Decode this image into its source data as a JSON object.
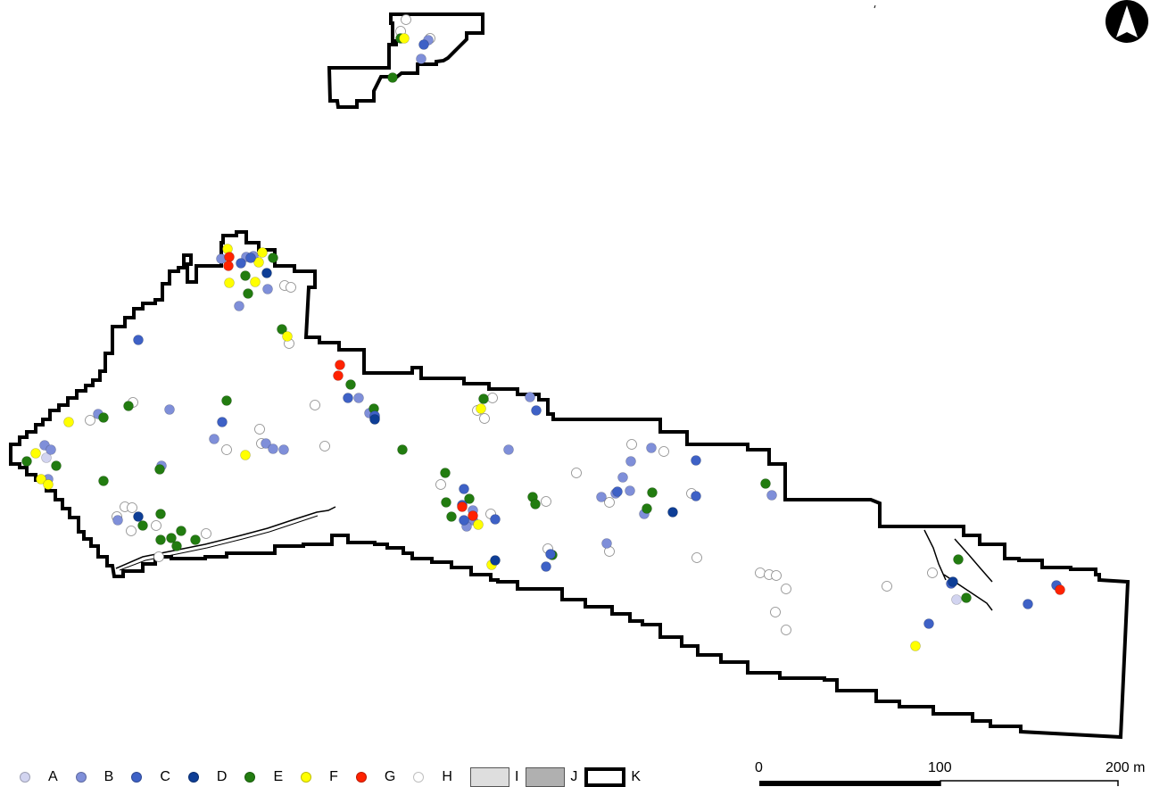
{
  "legend": [
    {
      "key": "A",
      "label": "A",
      "color": "#d2d4f0"
    },
    {
      "key": "B",
      "label": "B",
      "color": "#7f8fd9"
    },
    {
      "key": "C",
      "label": "C",
      "color": "#3e61c6"
    },
    {
      "key": "D",
      "label": "D",
      "color": "#0e3e96"
    },
    {
      "key": "E",
      "label": "E",
      "color": "#227c10"
    },
    {
      "key": "F",
      "label": "F",
      "color": "#ffff00"
    },
    {
      "key": "G",
      "label": "G",
      "color": "#ff2200"
    },
    {
      "key": "H",
      "label": "H",
      "color": "#ffffff"
    },
    {
      "key": "I",
      "label": "I",
      "color": "#dedede"
    },
    {
      "key": "J",
      "label": "J",
      "color": "#b0b0b0"
    },
    {
      "key": "K",
      "label": "K",
      "color": "#000000"
    }
  ],
  "scale": {
    "label_0": "0",
    "label_mid": "100",
    "label_end": "200",
    "unit": "m"
  },
  "north_arrow": "north-arrow-icon",
  "points": {
    "A": [
      [
        1072,
        672
      ],
      [
        52,
        513
      ]
    ],
    "B": [
      [
        472,
        66
      ],
      [
        480,
        45
      ],
      [
        268,
        343
      ],
      [
        300,
        324
      ],
      [
        190,
        459
      ],
      [
        110,
        464
      ],
      [
        181,
        522
      ],
      [
        240,
        492
      ],
      [
        298,
        497
      ],
      [
        306,
        503
      ],
      [
        318,
        504
      ],
      [
        50,
        499
      ],
      [
        57,
        504
      ],
      [
        54,
        537
      ],
      [
        132,
        583
      ],
      [
        402,
        446
      ],
      [
        414,
        463
      ],
      [
        420,
        468
      ],
      [
        570,
        504
      ],
      [
        530,
        572
      ],
      [
        530,
        583
      ],
      [
        523,
        590
      ],
      [
        680,
        609
      ],
      [
        707,
        517
      ],
      [
        730,
        502
      ],
      [
        698,
        535
      ],
      [
        706,
        550
      ],
      [
        690,
        553
      ],
      [
        674,
        557
      ],
      [
        722,
        576
      ],
      [
        865,
        555
      ],
      [
        594,
        445
      ],
      [
        284,
        287
      ],
      [
        276,
        288
      ],
      [
        248,
        290
      ]
    ],
    "C": [
      [
        475,
        50
      ],
      [
        155,
        381
      ],
      [
        249,
        473
      ],
      [
        420,
        466
      ],
      [
        390,
        446
      ],
      [
        520,
        548
      ],
      [
        555,
        582
      ],
      [
        518,
        566
      ],
      [
        520,
        583
      ],
      [
        601,
        460
      ],
      [
        612,
        635
      ],
      [
        617,
        621
      ],
      [
        692,
        551
      ],
      [
        780,
        516
      ],
      [
        780,
        556
      ],
      [
        1152,
        677
      ],
      [
        1041,
        699
      ],
      [
        1184,
        656
      ],
      [
        1066,
        654
      ],
      [
        270,
        295
      ],
      [
        281,
        289
      ]
    ],
    "D": [
      [
        299,
        306
      ],
      [
        155,
        579
      ],
      [
        420,
        470
      ],
      [
        555,
        628
      ],
      [
        754,
        574
      ],
      [
        1068,
        652
      ]
    ],
    "E": [
      [
        449,
        43
      ],
      [
        440,
        87
      ],
      [
        275,
        309
      ],
      [
        278,
        329
      ],
      [
        316,
        369
      ],
      [
        254,
        449
      ],
      [
        144,
        455
      ],
      [
        116,
        468
      ],
      [
        63,
        522
      ],
      [
        30,
        517
      ],
      [
        116,
        539
      ],
      [
        179,
        526
      ],
      [
        180,
        576
      ],
      [
        160,
        589
      ],
      [
        180,
        605
      ],
      [
        192,
        603
      ],
      [
        203,
        595
      ],
      [
        219,
        605
      ],
      [
        198,
        612
      ],
      [
        393,
        431
      ],
      [
        419,
        458
      ],
      [
        451,
        504
      ],
      [
        499,
        530
      ],
      [
        500,
        563
      ],
      [
        506,
        579
      ],
      [
        526,
        559
      ],
      [
        542,
        447
      ],
      [
        597,
        557
      ],
      [
        600,
        565
      ],
      [
        619,
        622
      ],
      [
        731,
        552
      ],
      [
        725,
        570
      ],
      [
        858,
        542
      ],
      [
        1074,
        627
      ],
      [
        1083,
        670
      ],
      [
        306,
        289
      ]
    ],
    "F": [
      [
        453,
        43
      ],
      [
        255,
        279
      ],
      [
        294,
        283
      ],
      [
        286,
        316
      ],
      [
        257,
        317
      ],
      [
        322,
        377
      ],
      [
        77,
        473
      ],
      [
        40,
        508
      ],
      [
        46,
        537
      ],
      [
        54,
        543
      ],
      [
        275,
        510
      ],
      [
        539,
        458
      ],
      [
        536,
        588
      ],
      [
        551,
        633
      ],
      [
        1026,
        724
      ],
      [
        290,
        294
      ]
    ],
    "G": [
      [
        257,
        288
      ],
      [
        256,
        298
      ],
      [
        381,
        409
      ],
      [
        379,
        421
      ],
      [
        518,
        568
      ],
      [
        530,
        578
      ],
      [
        1188,
        661
      ]
    ],
    "H": [
      [
        455,
        22
      ],
      [
        449,
        35
      ],
      [
        482,
        43
      ],
      [
        319,
        320
      ],
      [
        326,
        322
      ],
      [
        324,
        385
      ],
      [
        149,
        451
      ],
      [
        101,
        471
      ],
      [
        291,
        481
      ],
      [
        254,
        504
      ],
      [
        293,
        497
      ],
      [
        364,
        500
      ],
      [
        353,
        454
      ],
      [
        535,
        460
      ],
      [
        543,
        469
      ],
      [
        552,
        446
      ],
      [
        140,
        568
      ],
      [
        148,
        569
      ],
      [
        131,
        579
      ],
      [
        147,
        595
      ],
      [
        175,
        589
      ],
      [
        231,
        598
      ],
      [
        178,
        624
      ],
      [
        494,
        543
      ],
      [
        550,
        576
      ],
      [
        612,
        562
      ],
      [
        646,
        530
      ],
      [
        683,
        563
      ],
      [
        708,
        498
      ],
      [
        744,
        506
      ],
      [
        775,
        553
      ],
      [
        614,
        615
      ],
      [
        683,
        618
      ],
      [
        781,
        625
      ],
      [
        852,
        642
      ],
      [
        862,
        644
      ],
      [
        870,
        645
      ],
      [
        881,
        660
      ],
      [
        869,
        686
      ],
      [
        881,
        706
      ],
      [
        994,
        657
      ],
      [
        1045,
        642
      ]
    ]
  }
}
